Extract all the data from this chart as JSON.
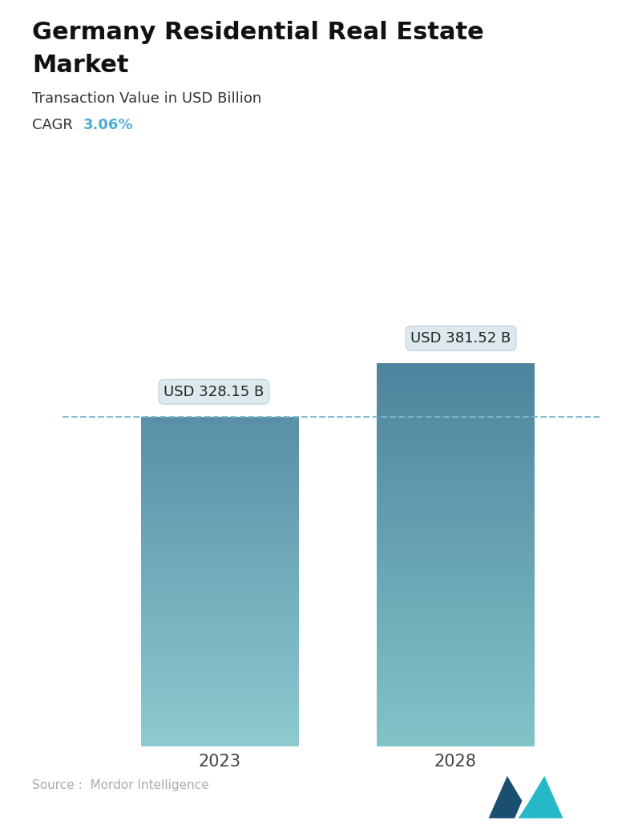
{
  "title_line1": "Germany Residential Real Estate",
  "title_line2": "Market",
  "subtitle": "Transaction Value in USD Billion",
  "cagr_label": "CAGR",
  "cagr_value": "3.06%",
  "cagr_color": "#4aadd6",
  "categories": [
    "2023",
    "2028"
  ],
  "values": [
    328.15,
    381.52
  ],
  "labels": [
    "USD 328.15 B",
    "USD 381.52 B"
  ],
  "bar_top_color_1": "#5a8fa8",
  "bar_bottom_color_1": "#8dcbce",
  "bar_top_color_2": "#4d849e",
  "bar_bottom_color_2": "#82c4c8",
  "dashed_line_color": "#7ab8cc",
  "callout_bg": "#dce8ed",
  "callout_edge": "#b8d0da",
  "source_text": "Source :  Mordor Intelligence",
  "source_color": "#aaaaaa",
  "bg_color": "#ffffff",
  "ylim_max": 430,
  "bar_width": 0.28,
  "x_positions": [
    0.3,
    0.72
  ],
  "xlim": [
    0.0,
    1.0
  ],
  "title_fontsize": 22,
  "subtitle_fontsize": 13,
  "cagr_fontsize": 13,
  "label_fontsize": 13,
  "tick_fontsize": 15,
  "source_fontsize": 11
}
